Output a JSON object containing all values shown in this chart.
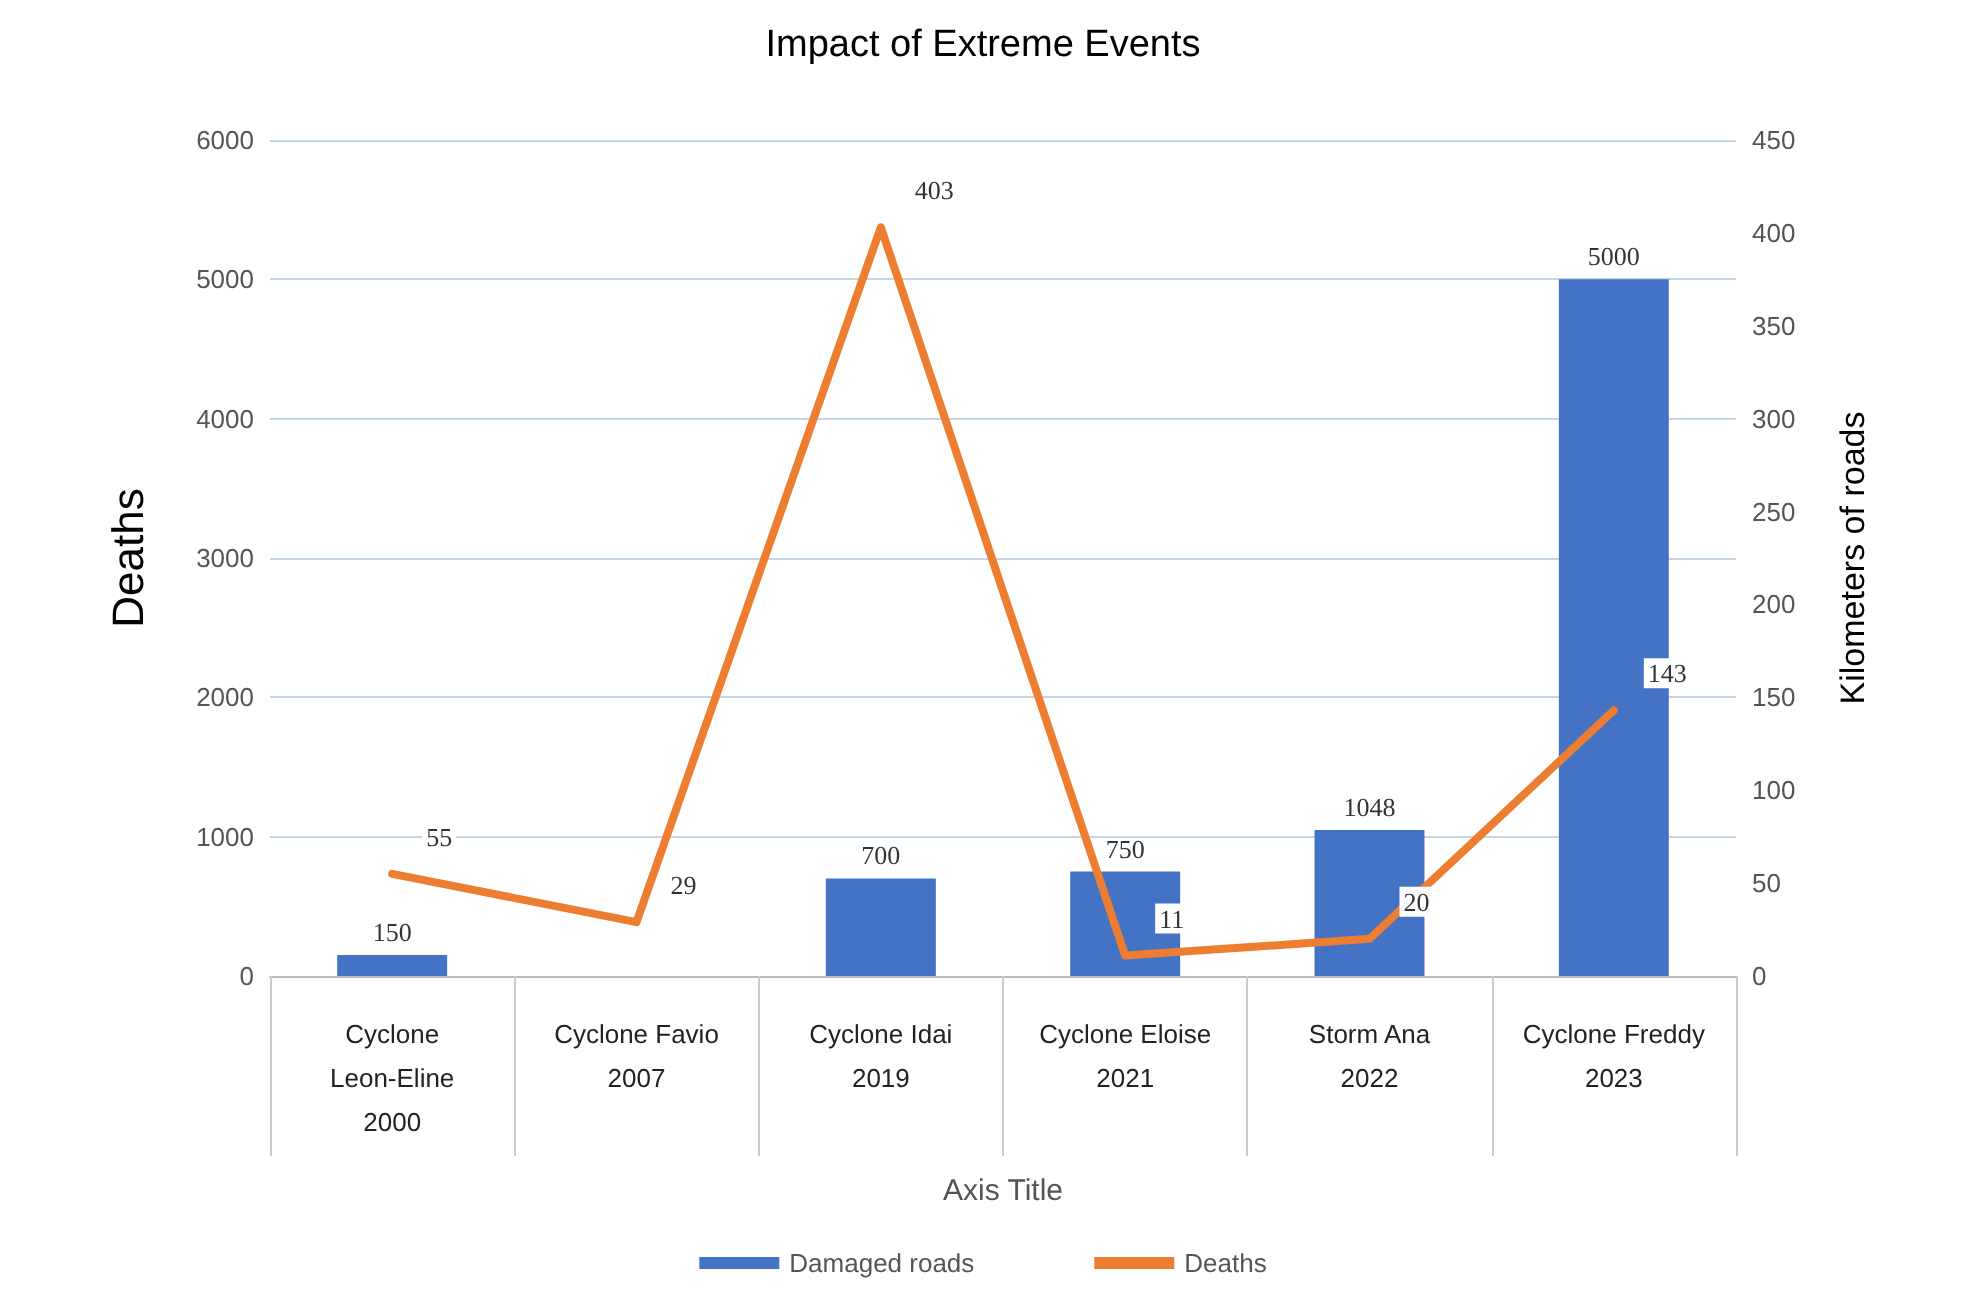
{
  "chart_data": {
    "type": "bar",
    "title": "Impact of Extreme Events",
    "xlabel": "Axis Title",
    "ylabel": "Deaths",
    "y2label": "Kilometers of roads",
    "categories": [
      "Cyclone\nLeon-Eline\n2000",
      "Cyclone Favio\n2007",
      "Cyclone Idai\n2019",
      "Cyclone Eloise\n2021",
      "Storm Ana\n2022",
      "Cyclone Freddy\n2023"
    ],
    "series": [
      {
        "name": "Damaged roads",
        "color": "#4472c4",
        "values": [
          150,
          null,
          700,
          750,
          1048,
          5000
        ]
      },
      {
        "name": "Deaths",
        "type": "line",
        "axis": "y2",
        "color": "#ed7d31",
        "values": [
          55,
          29,
          403,
          11,
          20,
          143
        ]
      }
    ],
    "ylim": [
      0,
      6000
    ],
    "yticks": [
      0,
      1000,
      2000,
      3000,
      4000,
      5000,
      6000
    ],
    "y2lim": [
      0,
      450
    ],
    "y2ticks": [
      0,
      50,
      100,
      150,
      200,
      250,
      300,
      350,
      400,
      450
    ],
    "grid": "y",
    "legend": "bottom",
    "data_labels": true,
    "marker": "none",
    "line_style": "solid"
  }
}
